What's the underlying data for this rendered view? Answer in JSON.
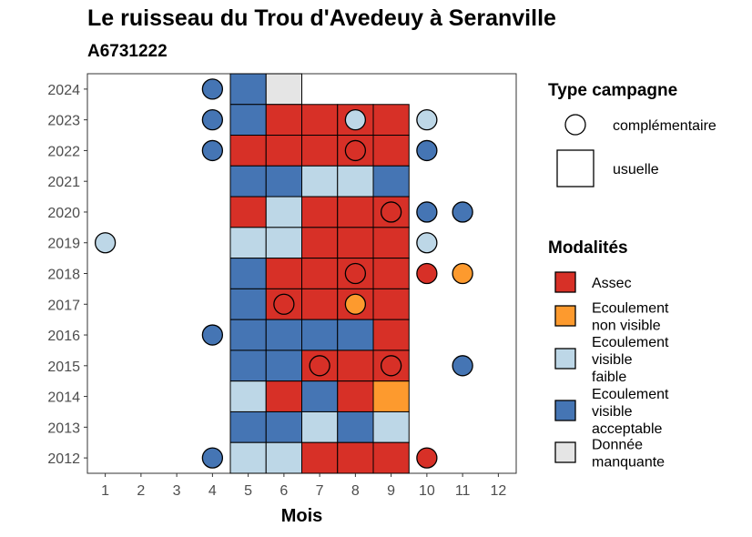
{
  "title": "Le ruisseau du Trou d'Avedeuy à Seranville",
  "subtitle": "A6731222",
  "chart_data": {
    "type": "heatmap",
    "xlabel": "Mois",
    "ylabel": "",
    "x_ticks": [
      1,
      2,
      3,
      4,
      5,
      6,
      7,
      8,
      9,
      10,
      11,
      12
    ],
    "y_ticks": [
      2012,
      2013,
      2014,
      2015,
      2016,
      2017,
      2018,
      2019,
      2020,
      2021,
      2022,
      2023,
      2024
    ],
    "xlim": [
      0.5,
      12.5
    ],
    "ylim": [
      2011.5,
      2024.5
    ],
    "grid": false,
    "legends": {
      "type_title": "Type campagne",
      "type_entries": [
        {
          "key": "complementaire",
          "label": "complémentaire",
          "shape": "circle"
        },
        {
          "key": "usuelle",
          "label": "usuelle",
          "shape": "square"
        }
      ],
      "mod_title": "Modalités",
      "mod_entries": [
        {
          "key": "assec",
          "lines": [
            "Assec"
          ],
          "color": "#d73027"
        },
        {
          "key": "enviz",
          "lines": [
            "Ecoulement",
            "non visible"
          ],
          "color": "#fd9a2e"
        },
        {
          "key": "faible",
          "lines": [
            "Ecoulement",
            "visible",
            "faible"
          ],
          "color": "#bdd7e7"
        },
        {
          "key": "accept",
          "lines": [
            "Ecoulement",
            "visible",
            "acceptable"
          ],
          "color": "#4575b4"
        },
        {
          "key": "manq",
          "lines": [
            "Donnée",
            "manquante"
          ],
          "color": "#e5e5e5"
        }
      ]
    },
    "usuelle": [
      {
        "year": 2024,
        "month": 5,
        "mod": "accept"
      },
      {
        "year": 2024,
        "month": 6,
        "mod": "manq"
      },
      {
        "year": 2023,
        "month": 5,
        "mod": "accept"
      },
      {
        "year": 2023,
        "month": 6,
        "mod": "assec"
      },
      {
        "year": 2023,
        "month": 7,
        "mod": "assec"
      },
      {
        "year": 2023,
        "month": 8,
        "mod": "assec"
      },
      {
        "year": 2023,
        "month": 9,
        "mod": "assec"
      },
      {
        "year": 2022,
        "month": 5,
        "mod": "assec"
      },
      {
        "year": 2022,
        "month": 6,
        "mod": "assec"
      },
      {
        "year": 2022,
        "month": 7,
        "mod": "assec"
      },
      {
        "year": 2022,
        "month": 8,
        "mod": "assec"
      },
      {
        "year": 2022,
        "month": 9,
        "mod": "assec"
      },
      {
        "year": 2021,
        "month": 5,
        "mod": "accept"
      },
      {
        "year": 2021,
        "month": 6,
        "mod": "accept"
      },
      {
        "year": 2021,
        "month": 7,
        "mod": "faible"
      },
      {
        "year": 2021,
        "month": 8,
        "mod": "faible"
      },
      {
        "year": 2021,
        "month": 9,
        "mod": "accept"
      },
      {
        "year": 2020,
        "month": 5,
        "mod": "assec"
      },
      {
        "year": 2020,
        "month": 6,
        "mod": "faible"
      },
      {
        "year": 2020,
        "month": 7,
        "mod": "assec"
      },
      {
        "year": 2020,
        "month": 8,
        "mod": "assec"
      },
      {
        "year": 2020,
        "month": 9,
        "mod": "assec"
      },
      {
        "year": 2019,
        "month": 5,
        "mod": "faible"
      },
      {
        "year": 2019,
        "month": 6,
        "mod": "faible"
      },
      {
        "year": 2019,
        "month": 7,
        "mod": "assec"
      },
      {
        "year": 2019,
        "month": 8,
        "mod": "assec"
      },
      {
        "year": 2019,
        "month": 9,
        "mod": "assec"
      },
      {
        "year": 2018,
        "month": 5,
        "mod": "accept"
      },
      {
        "year": 2018,
        "month": 6,
        "mod": "assec"
      },
      {
        "year": 2018,
        "month": 7,
        "mod": "assec"
      },
      {
        "year": 2018,
        "month": 8,
        "mod": "assec"
      },
      {
        "year": 2018,
        "month": 9,
        "mod": "assec"
      },
      {
        "year": 2017,
        "month": 5,
        "mod": "accept"
      },
      {
        "year": 2017,
        "month": 6,
        "mod": "assec"
      },
      {
        "year": 2017,
        "month": 7,
        "mod": "assec"
      },
      {
        "year": 2017,
        "month": 8,
        "mod": "assec"
      },
      {
        "year": 2017,
        "month": 9,
        "mod": "assec"
      },
      {
        "year": 2016,
        "month": 5,
        "mod": "accept"
      },
      {
        "year": 2016,
        "month": 6,
        "mod": "accept"
      },
      {
        "year": 2016,
        "month": 7,
        "mod": "accept"
      },
      {
        "year": 2016,
        "month": 8,
        "mod": "accept"
      },
      {
        "year": 2016,
        "month": 9,
        "mod": "assec"
      },
      {
        "year": 2015,
        "month": 5,
        "mod": "accept"
      },
      {
        "year": 2015,
        "month": 6,
        "mod": "accept"
      },
      {
        "year": 2015,
        "month": 7,
        "mod": "assec"
      },
      {
        "year": 2015,
        "month": 8,
        "mod": "assec"
      },
      {
        "year": 2015,
        "month": 9,
        "mod": "assec"
      },
      {
        "year": 2014,
        "month": 5,
        "mod": "faible"
      },
      {
        "year": 2014,
        "month": 6,
        "mod": "assec"
      },
      {
        "year": 2014,
        "month": 7,
        "mod": "accept"
      },
      {
        "year": 2014,
        "month": 8,
        "mod": "assec"
      },
      {
        "year": 2014,
        "month": 9,
        "mod": "enviz"
      },
      {
        "year": 2013,
        "month": 5,
        "mod": "accept"
      },
      {
        "year": 2013,
        "month": 6,
        "mod": "accept"
      },
      {
        "year": 2013,
        "month": 7,
        "mod": "faible"
      },
      {
        "year": 2013,
        "month": 8,
        "mod": "accept"
      },
      {
        "year": 2013,
        "month": 9,
        "mod": "faible"
      },
      {
        "year": 2012,
        "month": 5,
        "mod": "faible"
      },
      {
        "year": 2012,
        "month": 6,
        "mod": "faible"
      },
      {
        "year": 2012,
        "month": 7,
        "mod": "assec"
      },
      {
        "year": 2012,
        "month": 8,
        "mod": "assec"
      },
      {
        "year": 2012,
        "month": 9,
        "mod": "assec"
      }
    ],
    "complementaire": [
      {
        "year": 2024,
        "month": 4,
        "mod": "accept"
      },
      {
        "year": 2023,
        "month": 4,
        "mod": "accept"
      },
      {
        "year": 2023,
        "month": 8,
        "mod": "faible"
      },
      {
        "year": 2023,
        "month": 10,
        "mod": "faible"
      },
      {
        "year": 2022,
        "month": 4,
        "mod": "accept"
      },
      {
        "year": 2022,
        "month": 8,
        "mod": "assec"
      },
      {
        "year": 2022,
        "month": 10,
        "mod": "accept"
      },
      {
        "year": 2020,
        "month": 9,
        "mod": "assec"
      },
      {
        "year": 2020,
        "month": 10,
        "mod": "accept"
      },
      {
        "year": 2020,
        "month": 11,
        "mod": "accept"
      },
      {
        "year": 2019,
        "month": 1,
        "mod": "faible"
      },
      {
        "year": 2019,
        "month": 10,
        "mod": "faible"
      },
      {
        "year": 2018,
        "month": 8,
        "mod": "assec"
      },
      {
        "year": 2018,
        "month": 10,
        "mod": "assec"
      },
      {
        "year": 2018,
        "month": 11,
        "mod": "enviz"
      },
      {
        "year": 2017,
        "month": 6,
        "mod": "assec"
      },
      {
        "year": 2017,
        "month": 8,
        "mod": "enviz"
      },
      {
        "year": 2016,
        "month": 4,
        "mod": "accept"
      },
      {
        "year": 2015,
        "month": 7,
        "mod": "assec"
      },
      {
        "year": 2015,
        "month": 9,
        "mod": "assec"
      },
      {
        "year": 2015,
        "month": 11,
        "mod": "accept"
      },
      {
        "year": 2012,
        "month": 4,
        "mod": "accept"
      },
      {
        "year": 2012,
        "month": 10,
        "mod": "assec"
      }
    ]
  }
}
